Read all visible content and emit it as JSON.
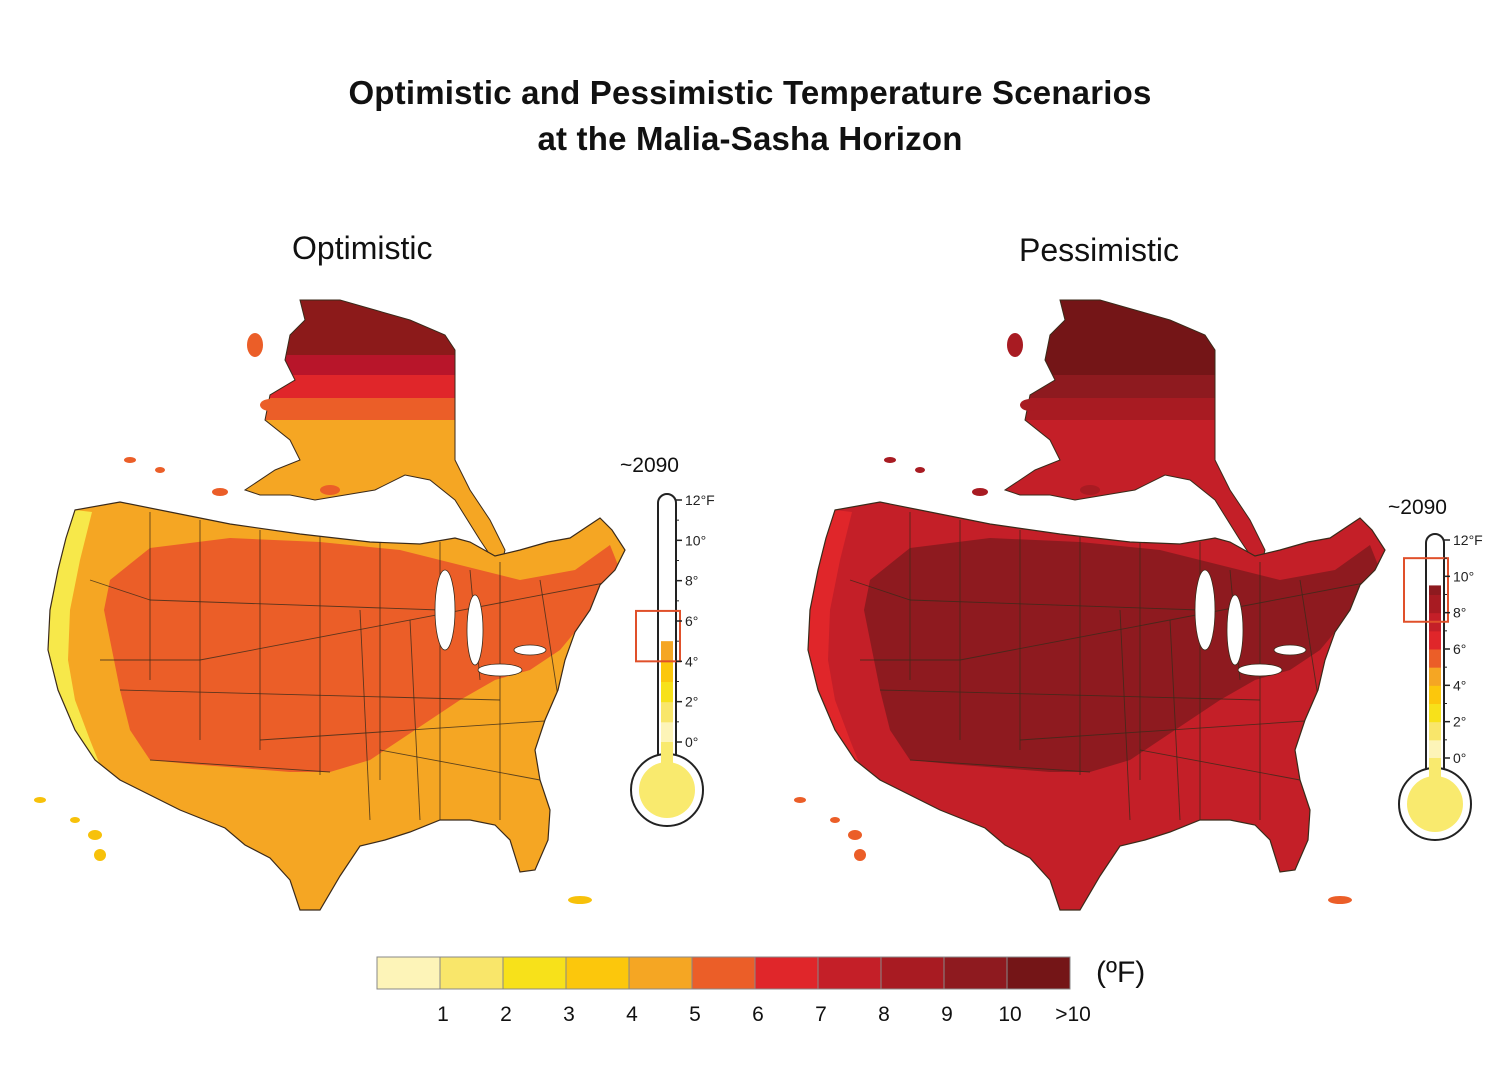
{
  "title": {
    "line1": "Optimistic and Pessimistic Temperature Scenarios",
    "line2": "at the Malia-Sasha Horizon"
  },
  "panels": [
    {
      "label": "Optimistic",
      "thermometer": {
        "year": "~2090",
        "level_f": 5,
        "range_low_f": 4,
        "range_high_f": 6.5
      },
      "colors": {
        "coast": "#f7e84a",
        "west": "#f5a623",
        "interior": "#eb5e28",
        "south": "#f5a623",
        "alaska_s": "#f5a623",
        "alaska_mid": "#eb5e28",
        "alaska_n": "#e0262a",
        "alaska_top": "#b8152a",
        "alaska_tip": "#8c1a1a",
        "hawaii": "#f7c10a"
      }
    },
    {
      "label": "Pessimistic",
      "thermometer": {
        "year": "~2090",
        "level_f": 9.5,
        "range_low_f": 7.5,
        "range_high_f": 11
      },
      "colors": {
        "coast": "#e0262a",
        "west": "#c41f28",
        "interior": "#8e1a1f",
        "south": "#c41f28",
        "alaska_s": "#c41f28",
        "alaska_mid": "#a81b22",
        "alaska_n": "#8e1a1f",
        "alaska_top": "#741517",
        "alaska_tip": "#741517",
        "hawaii": "#eb5e28"
      }
    }
  ],
  "thermometer_ticks": [
    "0°",
    "2°",
    "4°",
    "6°",
    "8°",
    "10°",
    "12°F"
  ],
  "legend": {
    "units": "(ºF)",
    "bins": [
      {
        "label": "1",
        "color": "#fdf4b8"
      },
      {
        "label": "2",
        "color": "#f9e66a"
      },
      {
        "label": "3",
        "color": "#f7e11a"
      },
      {
        "label": "4",
        "color": "#fcc70c"
      },
      {
        "label": "5",
        "color": "#f5a623"
      },
      {
        "label": "6",
        "color": "#eb5e28"
      },
      {
        "label": "7",
        "color": "#e0262a"
      },
      {
        "label": "8",
        "color": "#c41f28"
      },
      {
        "label": "9",
        "color": "#a81b22"
      },
      {
        "label": "10",
        "color": "#8e1a1f"
      },
      {
        "label": ">10",
        "color": "#741517"
      }
    ]
  }
}
